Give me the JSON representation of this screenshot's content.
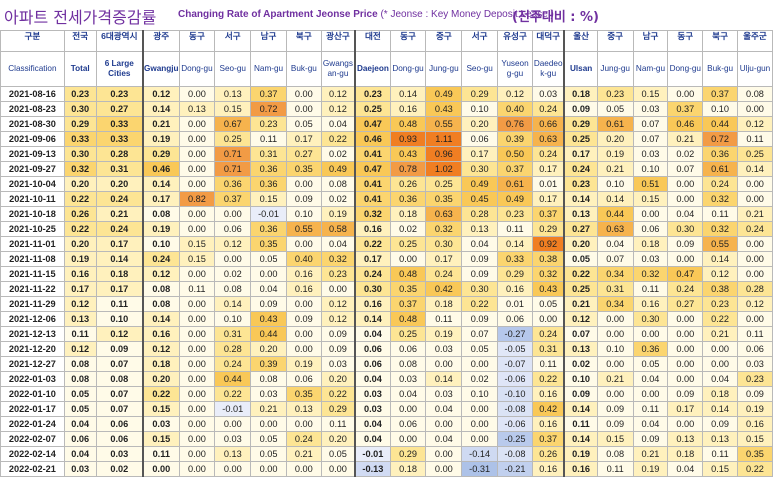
{
  "title_korean": "아파트 전세가격증감률",
  "title_english_main": "Changing Rate of Apartment Jeonse Price",
  "title_english_note": "(* Jeonse : Key Money Deposit Lease )",
  "unit_label": "(전주대비 : %)",
  "columns": [
    {
      "ko": "구분",
      "en": "Classification"
    },
    {
      "ko": "전국",
      "en": "Total"
    },
    {
      "ko": "6대광역시",
      "en": "6 Large Cities"
    },
    {
      "ko": "광주",
      "en": "Gwangju"
    },
    {
      "ko": "동구",
      "en": "Dong-gu"
    },
    {
      "ko": "서구",
      "en": "Seo-gu"
    },
    {
      "ko": "남구",
      "en": "Nam-gu"
    },
    {
      "ko": "북구",
      "en": "Buk-gu"
    },
    {
      "ko": "광산구",
      "en": "Gwangs an-gu"
    },
    {
      "ko": "대전",
      "en": "Daejeon"
    },
    {
      "ko": "동구",
      "en": "Dong-gu"
    },
    {
      "ko": "중구",
      "en": "Jung-gu"
    },
    {
      "ko": "서구",
      "en": "Seo-gu"
    },
    {
      "ko": "유성구",
      "en": "Yuseon g-gu"
    },
    {
      "ko": "대덕구",
      "en": "Daedeo k-gu"
    },
    {
      "ko": "울산",
      "en": "Ulsan"
    },
    {
      "ko": "중구",
      "en": "Jung-gu"
    },
    {
      "ko": "남구",
      "en": "Nam-gu"
    },
    {
      "ko": "동구",
      "en": "Dong-gu"
    },
    {
      "ko": "북구",
      "en": "Buk-gu"
    },
    {
      "ko": "울주군",
      "en": "Ulju-gun"
    }
  ],
  "rows": [
    [
      "2021-08-16",
      "0.23",
      "0.23",
      "0.12",
      "0.00",
      "0.13",
      "0.37",
      "0.00",
      "0.12",
      "0.23",
      "0.14",
      "0.49",
      "0.29",
      "0.12",
      "0.03",
      "0.18",
      "0.23",
      "0.15",
      "0.00",
      "0.37",
      "0.08"
    ],
    [
      "2021-08-23",
      "0.30",
      "0.27",
      "0.14",
      "0.13",
      "0.15",
      "0.72",
      "0.00",
      "0.12",
      "0.25",
      "0.16",
      "0.43",
      "0.10",
      "0.40",
      "0.24",
      "0.09",
      "0.05",
      "0.03",
      "0.37",
      "0.10",
      "0.00"
    ],
    [
      "2021-08-30",
      "0.29",
      "0.33",
      "0.21",
      "0.00",
      "0.67",
      "0.23",
      "0.05",
      "0.04",
      "0.47",
      "0.48",
      "0.55",
      "0.20",
      "0.76",
      "0.66",
      "0.29",
      "0.61",
      "0.07",
      "0.46",
      "0.44",
      "0.12"
    ],
    [
      "2021-09-06",
      "0.33",
      "0.33",
      "0.19",
      "0.00",
      "0.25",
      "0.11",
      "0.17",
      "0.22",
      "0.46",
      "0.93",
      "1.11",
      "0.06",
      "0.39",
      "0.63",
      "0.25",
      "0.20",
      "0.07",
      "0.21",
      "0.72",
      "0.11"
    ],
    [
      "2021-09-13",
      "0.30",
      "0.28",
      "0.29",
      "0.00",
      "0.71",
      "0.31",
      "0.27",
      "0.02",
      "0.41",
      "0.43",
      "0.96",
      "0.17",
      "0.50",
      "0.24",
      "0.17",
      "0.19",
      "0.03",
      "0.02",
      "0.36",
      "0.25"
    ],
    [
      "2021-09-27",
      "0.32",
      "0.31",
      "0.46",
      "0.00",
      "0.71",
      "0.36",
      "0.35",
      "0.49",
      "0.47",
      "0.78",
      "1.02",
      "0.30",
      "0.37",
      "0.17",
      "0.24",
      "0.21",
      "0.10",
      "0.07",
      "0.61",
      "0.14"
    ],
    [
      "2021-10-04",
      "0.20",
      "0.20",
      "0.14",
      "0.00",
      "0.36",
      "0.36",
      "0.00",
      "0.08",
      "0.41",
      "0.26",
      "0.25",
      "0.49",
      "0.61",
      "0.01",
      "0.23",
      "0.10",
      "0.51",
      "0.00",
      "0.24",
      "0.00"
    ],
    [
      "2021-10-11",
      "0.22",
      "0.24",
      "0.17",
      "0.82",
      "0.37",
      "0.15",
      "0.09",
      "0.02",
      "0.41",
      "0.36",
      "0.35",
      "0.45",
      "0.49",
      "0.17",
      "0.14",
      "0.14",
      "0.15",
      "0.00",
      "0.32",
      "0.00"
    ],
    [
      "2021-10-18",
      "0.26",
      "0.21",
      "0.08",
      "0.00",
      "0.00",
      "-0.01",
      "0.10",
      "0.19",
      "0.32",
      "0.18",
      "0.63",
      "0.28",
      "0.23",
      "0.37",
      "0.13",
      "0.44",
      "0.00",
      "0.04",
      "0.11",
      "0.21"
    ],
    [
      "2021-10-25",
      "0.22",
      "0.24",
      "0.19",
      "0.00",
      "0.06",
      "0.36",
      "0.55",
      "0.58",
      "0.16",
      "0.02",
      "0.32",
      "0.13",
      "0.11",
      "0.29",
      "0.27",
      "0.63",
      "0.06",
      "0.30",
      "0.32",
      "0.24"
    ],
    [
      "2021-11-01",
      "0.20",
      "0.17",
      "0.10",
      "0.15",
      "0.12",
      "0.35",
      "0.00",
      "0.04",
      "0.22",
      "0.25",
      "0.30",
      "0.04",
      "0.14",
      "0.92",
      "0.20",
      "0.04",
      "0.18",
      "0.09",
      "0.55",
      "0.00"
    ],
    [
      "2021-11-08",
      "0.19",
      "0.14",
      "0.24",
      "0.15",
      "0.00",
      "0.05",
      "0.40",
      "0.32",
      "0.17",
      "0.00",
      "0.17",
      "0.09",
      "0.33",
      "0.38",
      "0.05",
      "0.07",
      "0.03",
      "0.00",
      "0.14",
      "0.00"
    ],
    [
      "2021-11-15",
      "0.16",
      "0.18",
      "0.12",
      "0.00",
      "0.02",
      "0.00",
      "0.16",
      "0.23",
      "0.24",
      "0.48",
      "0.24",
      "0.09",
      "0.29",
      "0.32",
      "0.22",
      "0.34",
      "0.32",
      "0.47",
      "0.12",
      "0.00"
    ],
    [
      "2021-11-22",
      "0.17",
      "0.17",
      "0.08",
      "0.11",
      "0.08",
      "0.04",
      "0.16",
      "0.00",
      "0.30",
      "0.35",
      "0.42",
      "0.30",
      "0.16",
      "0.43",
      "0.25",
      "0.31",
      "0.11",
      "0.24",
      "0.38",
      "0.28"
    ],
    [
      "2021-11-29",
      "0.12",
      "0.11",
      "0.08",
      "0.00",
      "0.14",
      "0.09",
      "0.00",
      "0.12",
      "0.16",
      "0.37",
      "0.18",
      "0.22",
      "0.01",
      "0.05",
      "0.21",
      "0.34",
      "0.16",
      "0.27",
      "0.23",
      "0.12"
    ],
    [
      "2021-12-06",
      "0.13",
      "0.10",
      "0.14",
      "0.00",
      "0.10",
      "0.43",
      "0.09",
      "0.12",
      "0.14",
      "0.48",
      "0.11",
      "0.09",
      "0.06",
      "0.00",
      "0.12",
      "0.00",
      "0.30",
      "0.00",
      "0.22",
      "0.00"
    ],
    [
      "2021-12-13",
      "0.11",
      "0.12",
      "0.16",
      "0.00",
      "0.31",
      "0.44",
      "0.00",
      "0.09",
      "0.04",
      "0.25",
      "0.19",
      "0.07",
      "-0.27",
      "0.24",
      "0.07",
      "0.00",
      "0.00",
      "0.00",
      "0.21",
      "0.11"
    ],
    [
      "2021-12-20",
      "0.12",
      "0.09",
      "0.12",
      "0.00",
      "0.28",
      "0.20",
      "0.00",
      "0.09",
      "0.06",
      "0.06",
      "0.03",
      "0.05",
      "-0.05",
      "0.31",
      "0.13",
      "0.10",
      "0.36",
      "0.00",
      "0.00",
      "0.06"
    ],
    [
      "2021-12-27",
      "0.08",
      "0.07",
      "0.18",
      "0.00",
      "0.24",
      "0.39",
      "0.19",
      "0.03",
      "0.06",
      "0.08",
      "0.00",
      "0.00",
      "-0.07",
      "0.11",
      "0.02",
      "0.00",
      "0.05",
      "0.00",
      "0.00",
      "0.03"
    ],
    [
      "2022-01-03",
      "0.08",
      "0.08",
      "0.20",
      "0.00",
      "0.44",
      "0.08",
      "0.06",
      "0.20",
      "0.04",
      "0.03",
      "0.14",
      "0.02",
      "-0.06",
      "0.22",
      "0.10",
      "0.21",
      "0.04",
      "0.00",
      "0.04",
      "0.23"
    ],
    [
      "2022-01-10",
      "0.05",
      "0.07",
      "0.22",
      "0.00",
      "0.22",
      "0.03",
      "0.35",
      "0.22",
      "0.03",
      "0.04",
      "0.03",
      "0.10",
      "-0.10",
      "0.16",
      "0.09",
      "0.00",
      "0.00",
      "0.09",
      "0.18",
      "0.09"
    ],
    [
      "2022-01-17",
      "0.05",
      "0.07",
      "0.15",
      "0.00",
      "-0.01",
      "0.21",
      "0.13",
      "0.29",
      "0.03",
      "0.00",
      "0.04",
      "0.00",
      "-0.08",
      "0.42",
      "0.14",
      "0.09",
      "0.11",
      "0.17",
      "0.14",
      "0.19"
    ],
    [
      "2022-01-24",
      "0.04",
      "0.06",
      "0.03",
      "0.00",
      "0.00",
      "0.00",
      "0.00",
      "0.11",
      "0.04",
      "0.06",
      "0.00",
      "0.00",
      "-0.06",
      "0.16",
      "0.11",
      "0.09",
      "0.04",
      "0.00",
      "0.09",
      "0.16"
    ],
    [
      "2022-02-07",
      "0.06",
      "0.06",
      "0.15",
      "0.00",
      "0.03",
      "0.05",
      "0.24",
      "0.20",
      "0.04",
      "0.00",
      "0.04",
      "0.00",
      "-0.25",
      "0.37",
      "0.14",
      "0.15",
      "0.09",
      "0.13",
      "0.13",
      "0.15"
    ],
    [
      "2022-02-14",
      "0.04",
      "0.03",
      "0.11",
      "0.00",
      "0.13",
      "0.05",
      "0.21",
      "0.05",
      "-0.01",
      "0.29",
      "0.00",
      "-0.14",
      "-0.08",
      "0.26",
      "0.19",
      "0.08",
      "0.21",
      "0.18",
      "0.11",
      "0.35"
    ],
    [
      "2022-02-21",
      "0.03",
      "0.02",
      "0.00",
      "0.00",
      "0.00",
      "0.00",
      "0.00",
      "0.00",
      "-0.13",
      "0.18",
      "0.00",
      "-0.31",
      "-0.21",
      "0.16",
      "0.16",
      "0.11",
      "0.19",
      "0.04",
      "0.15",
      "0.22"
    ]
  ]
}
